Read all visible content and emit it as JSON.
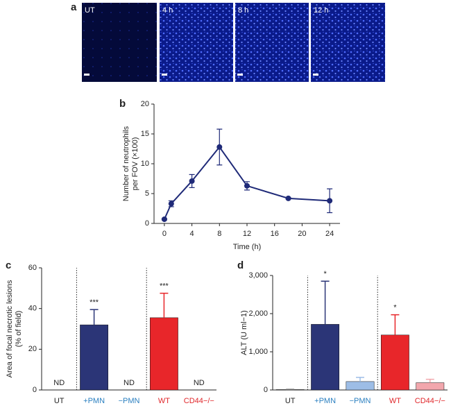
{
  "images": {
    "panel": "a",
    "labels": [
      "UT",
      "4 h",
      "8 h",
      "12 h"
    ]
  },
  "chart_data": [
    {
      "type": "line",
      "panel": "b",
      "ylabel": [
        "Number of neutrophils",
        "per FOV (×100)"
      ],
      "xlabel": "Time (h)",
      "x": [
        0,
        1,
        4,
        8,
        12,
        18,
        24
      ],
      "series": [
        {
          "color": "#1f2a78",
          "values": [
            0.7,
            3.3,
            7.1,
            12.8,
            6.3,
            4.2,
            3.8
          ],
          "errors": [
            0.1,
            0.5,
            1.1,
            3.0,
            0.7,
            0.1,
            2.0
          ]
        }
      ],
      "xlim": [
        -1.5,
        25.5
      ],
      "xticks": [
        0,
        4,
        8,
        12,
        16,
        20,
        24
      ],
      "ylim": [
        0,
        20
      ],
      "yticks": [
        0,
        5,
        10,
        15,
        20
      ]
    },
    {
      "type": "bar",
      "panel": "c",
      "ylabel": [
        "Area of focal necrotic lesions",
        "(% of field)"
      ],
      "categories": [
        "UT",
        "+PMN",
        "−PMN",
        "WT",
        "CD44−/−"
      ],
      "label_colors": [
        "#222222",
        "#2a7fc0",
        "#2a7fc0",
        "#e0262a",
        "#e0262a"
      ],
      "bar_colors": [
        "#9a9a9a",
        "#2b3577",
        "#9dbde6",
        "#e8262a",
        "#f2a7ad"
      ],
      "values": [
        null,
        32,
        null,
        35.5,
        null
      ],
      "errors": [
        null,
        7.5,
        null,
        12,
        null
      ],
      "annotations": [
        "ND",
        "***",
        "ND",
        "***",
        "ND"
      ],
      "ylim": [
        0,
        60
      ],
      "yticks": [
        0,
        20,
        40,
        60
      ]
    },
    {
      "type": "bar",
      "panel": "d",
      "ylabel": [
        "ALT (U ml−1)"
      ],
      "categories": [
        "UT",
        "+PMN",
        "−PMN",
        "WT",
        "CD44−/−"
      ],
      "label_colors": [
        "#222222",
        "#2a7fc0",
        "#2a7fc0",
        "#e0262a",
        "#e0262a"
      ],
      "bar_colors": [
        "#9a9a9a",
        "#2b3577",
        "#9dbde6",
        "#e8262a",
        "#f2a7ad"
      ],
      "values": [
        10,
        1720,
        220,
        1440,
        190
      ],
      "errors": [
        10,
        1130,
        110,
        530,
        90
      ],
      "annotations": [
        null,
        "*",
        null,
        "*",
        null
      ],
      "ylim": [
        0,
        3000
      ],
      "yticks": [
        0,
        {
          "value": 1000,
          "label": "1,000"
        },
        {
          "value": 2000,
          "label": "2,000"
        },
        {
          "value": 3000,
          "label": "3,000"
        }
      ]
    }
  ]
}
